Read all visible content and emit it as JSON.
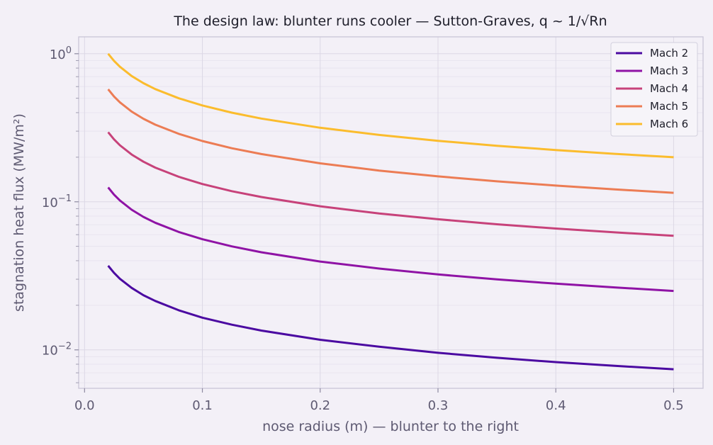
{
  "chart_data": {
    "type": "line",
    "title": "The design law: blunter runs cooler — Sutton-Graves, q ~ 1/√Rn",
    "xlabel": "nose radius (m)  —  blunter to the right",
    "ylabel": "stagnation heat flux (MW/m²)",
    "x_scale": "linear",
    "y_scale": "log",
    "xlim": [
      -0.005,
      0.525
    ],
    "ylim": [
      0.0055,
      1.3
    ],
    "x_ticks": [
      {
        "value": 0.0,
        "label": "0.0"
      },
      {
        "value": 0.1,
        "label": "0.1"
      },
      {
        "value": 0.2,
        "label": "0.2"
      },
      {
        "value": 0.3,
        "label": "0.3"
      },
      {
        "value": 0.4,
        "label": "0.4"
      },
      {
        "value": 0.5,
        "label": "0.5"
      }
    ],
    "y_ticks": [
      {
        "value": 0.01,
        "base": "10",
        "exp": "−2"
      },
      {
        "value": 0.1,
        "base": "10",
        "exp": "−1"
      },
      {
        "value": 1,
        "base": "10",
        "exp": "0"
      }
    ],
    "grid": true,
    "legend_position": "top-right",
    "x": [
      0.02,
      0.025,
      0.03,
      0.04,
      0.05,
      0.06,
      0.08,
      0.1,
      0.125,
      0.15,
      0.2,
      0.25,
      0.3,
      0.35,
      0.4,
      0.45,
      0.5
    ],
    "series": [
      {
        "name": "Mach 2",
        "color": "#4b0aa1",
        "values": [
          0.037,
          0.0331,
          0.0302,
          0.0262,
          0.0234,
          0.0214,
          0.0185,
          0.0165,
          0.0148,
          0.0135,
          0.0117,
          0.0105,
          0.00955,
          0.00884,
          0.00827,
          0.0078,
          0.0074
        ]
      },
      {
        "name": "Mach 3",
        "color": "#8f13a5",
        "values": [
          0.125,
          0.1118,
          0.1021,
          0.0884,
          0.0791,
          0.0722,
          0.0625,
          0.0559,
          0.05,
          0.0456,
          0.0395,
          0.0354,
          0.0323,
          0.0299,
          0.028,
          0.0264,
          0.025
        ]
      },
      {
        "name": "Mach 4",
        "color": "#c7427a",
        "values": [
          0.295,
          0.2639,
          0.2409,
          0.2086,
          0.1866,
          0.1703,
          0.1475,
          0.1319,
          0.118,
          0.1077,
          0.0933,
          0.0834,
          0.0762,
          0.0705,
          0.066,
          0.0622,
          0.059
        ]
      },
      {
        "name": "Mach 5",
        "color": "#ec7c54",
        "values": [
          0.575,
          0.5143,
          0.4695,
          0.4066,
          0.3637,
          0.332,
          0.2875,
          0.2572,
          0.23,
          0.21,
          0.1818,
          0.1626,
          0.1485,
          0.1375,
          0.1286,
          0.1212,
          0.115
        ]
      },
      {
        "name": "Mach 6",
        "color": "#fbbc2d",
        "values": [
          1.0,
          0.8944,
          0.8165,
          0.7071,
          0.6325,
          0.5774,
          0.5,
          0.4472,
          0.4,
          0.3651,
          0.3162,
          0.2828,
          0.2582,
          0.239,
          0.2236,
          0.2108,
          0.2
        ]
      }
    ]
  }
}
